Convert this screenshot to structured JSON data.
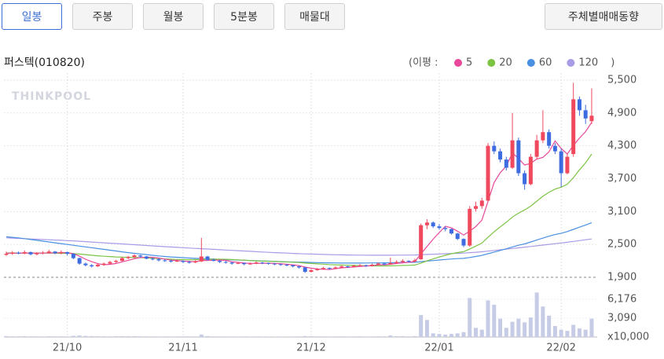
{
  "tabs": [
    "일봉",
    "주봉",
    "월봉",
    "5분봉",
    "매물대"
  ],
  "action_button": "주체별매매동향",
  "chart_data": {
    "type": "candlestick",
    "title": "퍼스텍(010820)",
    "watermark": "THINKPOOL",
    "legend_prefix": "(이평 :",
    "legend_suffix": ")",
    "categories": [
      null,
      null,
      null,
      null,
      null,
      null,
      null,
      null,
      null,
      null,
      "21/10",
      null,
      null,
      null,
      null,
      null,
      null,
      null,
      null,
      null,
      null,
      null,
      null,
      null,
      null,
      null,
      null,
      null,
      null,
      "21/11",
      null,
      null,
      null,
      null,
      null,
      null,
      null,
      null,
      null,
      null,
      null,
      null,
      null,
      null,
      null,
      null,
      null,
      null,
      null,
      null,
      "21/12",
      null,
      null,
      null,
      null,
      null,
      null,
      null,
      null,
      null,
      null,
      null,
      null,
      null,
      null,
      null,
      null,
      null,
      null,
      null,
      null,
      "22/01",
      null,
      null,
      null,
      null,
      null,
      null,
      null,
      null,
      null,
      null,
      null,
      null,
      null,
      null,
      null,
      null,
      null,
      null,
      null,
      "22/02",
      null,
      null,
      null,
      null,
      null
    ],
    "ohlc": [
      [
        2310,
        2370,
        2290,
        2330
      ],
      [
        2330,
        2380,
        2310,
        2350
      ],
      [
        2350,
        2370,
        2320,
        2340
      ],
      [
        2340,
        2390,
        2320,
        2360
      ],
      [
        2360,
        2370,
        2300,
        2320
      ],
      [
        2320,
        2360,
        2300,
        2340
      ],
      [
        2340,
        2380,
        2320,
        2350
      ],
      [
        2350,
        2400,
        2330,
        2370
      ],
      [
        2370,
        2380,
        2320,
        2340
      ],
      [
        2340,
        2390,
        2320,
        2360
      ],
      [
        2360,
        2370,
        2300,
        2330
      ],
      [
        2330,
        2340,
        2230,
        2250
      ],
      [
        2250,
        2260,
        2130,
        2150
      ],
      [
        2150,
        2170,
        2100,
        2120
      ],
      [
        2120,
        2140,
        2080,
        2100
      ],
      [
        2100,
        2150,
        2090,
        2130
      ],
      [
        2130,
        2170,
        2110,
        2150
      ],
      [
        2150,
        2200,
        2140,
        2180
      ],
      [
        2180,
        2220,
        2160,
        2200
      ],
      [
        2200,
        2270,
        2190,
        2250
      ],
      [
        2250,
        2290,
        2230,
        2270
      ],
      [
        2270,
        2320,
        2250,
        2300
      ],
      [
        2300,
        2310,
        2260,
        2280
      ],
      [
        2280,
        2290,
        2230,
        2240
      ],
      [
        2240,
        2260,
        2210,
        2230
      ],
      [
        2230,
        2250,
        2190,
        2210
      ],
      [
        2210,
        2230,
        2180,
        2200
      ],
      [
        2200,
        2220,
        2170,
        2190
      ],
      [
        2190,
        2230,
        2180,
        2200
      ],
      [
        2200,
        2210,
        2160,
        2180
      ],
      [
        2180,
        2200,
        2150,
        2170
      ],
      [
        2170,
        2210,
        2160,
        2190
      ],
      [
        2190,
        2620,
        2180,
        2280
      ],
      [
        2280,
        2290,
        2200,
        2220
      ],
      [
        2220,
        2240,
        2190,
        2200
      ],
      [
        2200,
        2220,
        2160,
        2180
      ],
      [
        2180,
        2200,
        2150,
        2170
      ],
      [
        2170,
        2180,
        2130,
        2150
      ],
      [
        2150,
        2180,
        2140,
        2160
      ],
      [
        2160,
        2170,
        2120,
        2140
      ],
      [
        2140,
        2170,
        2130,
        2150
      ],
      [
        2150,
        2190,
        2140,
        2170
      ],
      [
        2170,
        2180,
        2140,
        2160
      ],
      [
        2160,
        2170,
        2130,
        2150
      ],
      [
        2150,
        2160,
        2120,
        2140
      ],
      [
        2140,
        2150,
        2110,
        2130
      ],
      [
        2130,
        2140,
        2100,
        2120
      ],
      [
        2120,
        2130,
        2080,
        2100
      ],
      [
        2100,
        2110,
        2060,
        2080
      ],
      [
        2080,
        2090,
        1980,
        2000
      ],
      [
        2000,
        2050,
        1990,
        2030
      ],
      [
        2030,
        2070,
        2020,
        2050
      ],
      [
        2050,
        2090,
        2040,
        2070
      ],
      [
        2070,
        2080,
        2040,
        2060
      ],
      [
        2060,
        2100,
        2050,
        2080
      ],
      [
        2080,
        2120,
        2070,
        2100
      ],
      [
        2100,
        2110,
        2070,
        2090
      ],
      [
        2090,
        2130,
        2080,
        2110
      ],
      [
        2110,
        2140,
        2100,
        2120
      ],
      [
        2120,
        2130,
        2090,
        2110
      ],
      [
        2110,
        2150,
        2100,
        2130
      ],
      [
        2130,
        2170,
        2120,
        2150
      ],
      [
        2150,
        2160,
        2120,
        2140
      ],
      [
        2140,
        2260,
        2130,
        2160
      ],
      [
        2160,
        2210,
        2150,
        2180
      ],
      [
        2180,
        2230,
        2170,
        2200
      ],
      [
        2200,
        2210,
        2170,
        2190
      ],
      [
        2190,
        2240,
        2180,
        2210
      ],
      [
        2230,
        2880,
        2220,
        2850
      ],
      [
        2850,
        2960,
        2780,
        2900
      ],
      [
        2900,
        2920,
        2800,
        2830
      ],
      [
        2830,
        2870,
        2770,
        2800
      ],
      [
        2800,
        2830,
        2740,
        2780
      ],
      [
        2780,
        2790,
        2680,
        2700
      ],
      [
        2700,
        2710,
        2580,
        2600
      ],
      [
        2600,
        2610,
        2450,
        2480
      ],
      [
        2480,
        3200,
        2460,
        3150
      ],
      [
        3150,
        3280,
        3100,
        3200
      ],
      [
        3200,
        3350,
        3150,
        3300
      ],
      [
        3300,
        4350,
        3280,
        4300
      ],
      [
        4300,
        4380,
        4150,
        4200
      ],
      [
        4200,
        4250,
        4000,
        4050
      ],
      [
        4050,
        4100,
        3850,
        3900
      ],
      [
        3900,
        4900,
        3880,
        4400
      ],
      [
        4400,
        4450,
        3750,
        3800
      ],
      [
        3800,
        3850,
        3500,
        3600
      ],
      [
        3600,
        4150,
        3580,
        4100
      ],
      [
        4100,
        4500,
        4050,
        4400
      ],
      [
        4400,
        4950,
        4350,
        4550
      ],
      [
        4550,
        4600,
        4250,
        4300
      ],
      [
        4300,
        4350,
        4150,
        4200
      ],
      [
        4200,
        4250,
        3550,
        3800
      ],
      [
        3800,
        4150,
        3780,
        4100
      ],
      [
        4150,
        5450,
        4100,
        5150
      ],
      [
        5150,
        5200,
        4850,
        4950
      ],
      [
        4950,
        5050,
        4700,
        4800
      ],
      [
        4750,
        5350,
        4700,
        4850
      ]
    ],
    "up_color": "#f0485c",
    "down_color": "#3d6be0",
    "series": [
      {
        "name": "5",
        "color": "#e8479a",
        "values": [
          2340,
          2340,
          2340,
          2345,
          2340,
          2342,
          2342,
          2348,
          2344,
          2352,
          2350,
          2330,
          2286,
          2230,
          2186,
          2150,
          2130,
          2136,
          2152,
          2182,
          2210,
          2240,
          2260,
          2268,
          2264,
          2252,
          2232,
          2214,
          2206,
          2196,
          2188,
          2186,
          2204,
          2208,
          2212,
          2214,
          2210,
          2184,
          2172,
          2160,
          2154,
          2154,
          2156,
          2156,
          2154,
          2148,
          2140,
          2128,
          2114,
          2086,
          2066,
          2052,
          2046,
          2042,
          2058,
          2072,
          2080,
          2088,
          2100,
          2106,
          2114,
          2126,
          2130,
          2138,
          2152,
          2164,
          2174,
          2188,
          2326,
          2464,
          2596,
          2718,
          2832,
          2802,
          2742,
          2672,
          2742,
          2826,
          2946,
          3286,
          3630,
          3810,
          3930,
          4170,
          4070,
          3950,
          3980,
          4060,
          4090,
          4190,
          4390,
          4250,
          4150,
          4310,
          4440,
          4560,
          4730
        ]
      },
      {
        "name": "20",
        "color": "#7cc444",
        "values": [
          2345,
          2344,
          2343,
          2342,
          2342,
          2341,
          2341,
          2340,
          2340,
          2339,
          2338,
          2333,
          2324,
          2314,
          2303,
          2293,
          2285,
          2278,
          2272,
          2268,
          2265,
          2262,
          2259,
          2254,
          2249,
          2243,
          2236,
          2230,
          2225,
          2222,
          2221,
          2222,
          2226,
          2229,
          2230,
          2230,
          2228,
          2224,
          2218,
          2212,
          2206,
          2200,
          2196,
          2192,
          2188,
          2184,
          2180,
          2175,
          2169,
          2160,
          2152,
          2145,
          2139,
          2133,
          2128,
          2124,
          2120,
          2117,
          2114,
          2111,
          2108,
          2108,
          2108,
          2109,
          2112,
          2116,
          2120,
          2124,
          2160,
          2200,
          2236,
          2270,
          2302,
          2330,
          2352,
          2368,
          2418,
          2470,
          2525,
          2630,
          2730,
          2820,
          2905,
          3000,
          3070,
          3130,
          3200,
          3290,
          3380,
          3450,
          3510,
          3545,
          3600,
          3720,
          3860,
          3990,
          4150
        ]
      },
      {
        "name": "60",
        "color": "#4a90e2",
        "values": [
          2640,
          2630,
          2620,
          2605,
          2590,
          2575,
          2560,
          2545,
          2530,
          2515,
          2500,
          2485,
          2470,
          2455,
          2440,
          2425,
          2410,
          2395,
          2380,
          2365,
          2350,
          2338,
          2326,
          2314,
          2302,
          2290,
          2280,
          2272,
          2265,
          2258,
          2252,
          2246,
          2241,
          2236,
          2231,
          2227,
          2223,
          2219,
          2215,
          2211,
          2207,
          2203,
          2199,
          2195,
          2191,
          2187,
          2183,
          2180,
          2177,
          2174,
          2171,
          2168,
          2166,
          2164,
          2162,
          2160,
          2160,
          2160,
          2160,
          2161,
          2162,
          2163,
          2164,
          2166,
          2168,
          2170,
          2172,
          2174,
          2185,
          2196,
          2206,
          2216,
          2226,
          2234,
          2241,
          2246,
          2262,
          2280,
          2300,
          2330,
          2360,
          2390,
          2420,
          2455,
          2485,
          2510,
          2545,
          2580,
          2615,
          2650,
          2680,
          2705,
          2735,
          2775,
          2815,
          2855,
          2895
        ]
      },
      {
        "name": "120",
        "color": "#a99be6",
        "values": [
          2620,
          2615,
          2610,
          2605,
          2600,
          2595,
          2590,
          2585,
          2580,
          2575,
          2570,
          2565,
          2558,
          2551,
          2544,
          2537,
          2530,
          2523,
          2516,
          2509,
          2502,
          2495,
          2488,
          2481,
          2474,
          2467,
          2460,
          2453,
          2446,
          2440,
          2434,
          2428,
          2422,
          2416,
          2410,
          2404,
          2398,
          2392,
          2386,
          2380,
          2374,
          2368,
          2362,
          2356,
          2351,
          2346,
          2341,
          2336,
          2332,
          2328,
          2324,
          2321,
          2318,
          2315,
          2312,
          2310,
          2308,
          2306,
          2305,
          2304,
          2303,
          2303,
          2303,
          2303,
          2304,
          2305,
          2306,
          2308,
          2313,
          2318,
          2322,
          2326,
          2330,
          2334,
          2338,
          2342,
          2350,
          2358,
          2366,
          2378,
          2390,
          2402,
          2414,
          2426,
          2438,
          2450,
          2462,
          2475,
          2488,
          2501,
          2514,
          2527,
          2540,
          2555,
          2570,
          2585,
          2600
        ]
      }
    ],
    "ylim": [
      1900,
      5600
    ],
    "yticks": [
      {
        "value": 1900,
        "label": "1,900"
      },
      {
        "value": 2500,
        "label": "2,500"
      },
      {
        "value": 3100,
        "label": "3,100"
      },
      {
        "value": 3700,
        "label": "3,700"
      },
      {
        "value": 4300,
        "label": "4,300"
      },
      {
        "value": 4900,
        "label": "4,900"
      },
      {
        "value": 5500,
        "label": "5,500"
      }
    ],
    "grid": true,
    "volume": {
      "color": "#c6cbe6",
      "unit": "x10,000",
      "ylim": [
        0,
        7600
      ],
      "yticks": [
        {
          "value": 3090,
          "label": "3,090"
        },
        {
          "value": 6176,
          "label": "6,176"
        }
      ],
      "values": [
        150,
        120,
        100,
        130,
        110,
        100,
        90,
        120,
        100,
        110,
        90,
        200,
        250,
        180,
        150,
        120,
        110,
        100,
        120,
        130,
        140,
        130,
        110,
        100,
        90,
        80,
        90,
        80,
        90,
        100,
        90,
        80,
        400,
        150,
        100,
        90,
        80,
        80,
        70,
        80,
        70,
        80,
        70,
        70,
        60,
        70,
        60,
        80,
        90,
        150,
        120,
        100,
        90,
        80,
        90,
        100,
        80,
        90,
        100,
        80,
        90,
        110,
        90,
        250,
        130,
        140,
        100,
        150,
        3600,
        2800,
        600,
        500,
        400,
        500,
        600,
        800,
        6400,
        1500,
        1200,
        6000,
        5300,
        3000,
        1500,
        2500,
        3000,
        2400,
        3200,
        7300,
        5000,
        3500,
        1800,
        1200,
        1000,
        2000,
        1400,
        1200,
        3000
      ]
    }
  }
}
